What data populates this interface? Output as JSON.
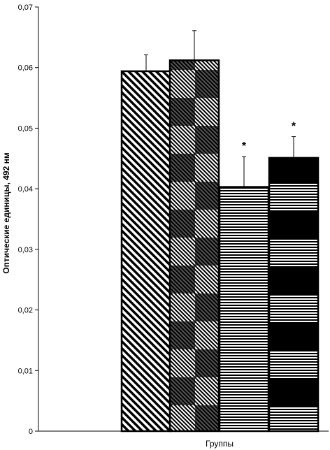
{
  "chart_data": {
    "type": "bar",
    "title": "",
    "xlabel": "Группы",
    "ylabel": "Оптические единицы, 492 нм",
    "ylim": [
      0,
      0.07
    ],
    "yticks": [
      0,
      0.01,
      0.02,
      0.03,
      0.04,
      0.05,
      0.06,
      0.07
    ],
    "ytick_labels": [
      "0",
      "0,01",
      "0,02",
      "0,03",
      "0,04",
      "0,05",
      "0,06",
      "0,07"
    ],
    "grid": false,
    "legend": "none",
    "series": [
      {
        "values": [
          0.0594,
          0.0612,
          0.0403,
          0.0451
        ],
        "errors": [
          0.0027,
          0.0049,
          0.005,
          0.0035
        ]
      }
    ],
    "annotations": [
      {
        "bar_index": 2,
        "text": "*"
      },
      {
        "bar_index": 3,
        "text": "*"
      }
    ],
    "patterns": [
      "diagonal-stripes",
      "diagonal-checker",
      "horizontal-stripes",
      "horizontal-bands"
    ]
  }
}
